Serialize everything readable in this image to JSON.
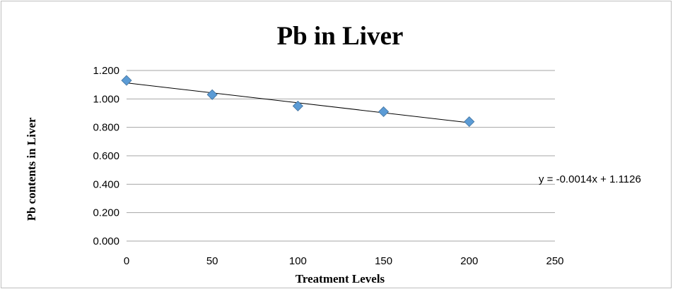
{
  "chart_data": {
    "type": "scatter",
    "title": "Pb in Liver",
    "xlabel": "Treatment Levels",
    "ylabel": "Pb contents in Liver",
    "xlim": [
      0,
      250
    ],
    "ylim": [
      0,
      1.2
    ],
    "x_ticks": [
      "0",
      "50",
      "100",
      "150",
      "200",
      "250"
    ],
    "y_ticks": [
      "0.000",
      "0.200",
      "0.400",
      "0.600",
      "0.800",
      "1.000",
      "1.200"
    ],
    "grid": "horizontal",
    "legend": "none",
    "series": [
      {
        "x": [
          0,
          50,
          100,
          150,
          200
        ],
        "y": [
          1.13,
          1.03,
          0.95,
          0.91,
          0.84
        ],
        "marker": "diamond",
        "color": "#5b9bd5"
      }
    ],
    "trendline": {
      "type": "linear",
      "slope": -0.0014,
      "intercept": 1.1126,
      "x_range": [
        0,
        200
      ],
      "equation": "y = -0.0014x + 1.1126",
      "color": "#000000"
    }
  }
}
